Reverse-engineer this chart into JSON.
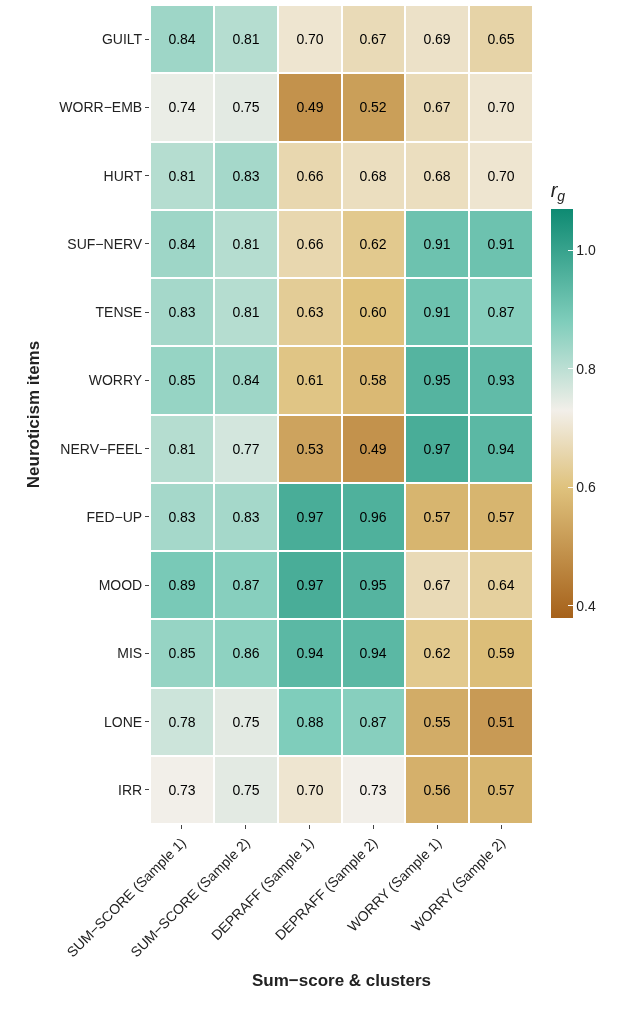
{
  "chart_data": {
    "type": "heatmap",
    "xlabel": "Sum−score & clusters",
    "ylabel": "Neuroticism items",
    "clabel": "r$_{g}$",
    "categories": [
      "SUM−SCORE (Sample 1)",
      "SUM−SCORE (Sample 2)",
      "DEPRAFF (Sample 1)",
      "DEPRAFF (Sample 2)",
      "WORRY (Sample 1)",
      "WORRY (Sample 2)"
    ],
    "y_categories": [
      "GUILT",
      "WORR−EMB",
      "HURT",
      "SUF−NERV",
      "TENSE",
      "WORRY",
      "NERV−FEEL",
      "FED−UP",
      "MOOD",
      "MIS",
      "LONE",
      "IRR"
    ],
    "cells": [
      [
        0.84,
        0.81,
        0.7,
        0.67,
        0.69,
        0.65
      ],
      [
        0.74,
        0.75,
        0.49,
        0.52,
        0.67,
        0.7
      ],
      [
        0.81,
        0.83,
        0.66,
        0.68,
        0.68,
        0.7
      ],
      [
        0.84,
        0.81,
        0.66,
        0.62,
        0.91,
        0.91
      ],
      [
        0.83,
        0.81,
        0.63,
        0.6,
        0.91,
        0.87
      ],
      [
        0.85,
        0.84,
        0.61,
        0.58,
        0.95,
        0.93
      ],
      [
        0.81,
        0.77,
        0.53,
        0.49,
        0.97,
        0.94
      ],
      [
        0.83,
        0.83,
        0.97,
        0.96,
        0.57,
        0.57
      ],
      [
        0.89,
        0.87,
        0.97,
        0.95,
        0.67,
        0.64
      ],
      [
        0.85,
        0.86,
        0.94,
        0.94,
        0.62,
        0.59
      ],
      [
        0.78,
        0.75,
        0.88,
        0.87,
        0.55,
        0.51
      ],
      [
        0.73,
        0.75,
        0.7,
        0.73,
        0.56,
        0.57
      ]
    ],
    "cell_labels": [
      [
        "0.84",
        "0.81",
        "0.70",
        "0.67",
        "0.69",
        "0.65"
      ],
      [
        "0.74",
        "0.75",
        "0.49",
        "0.52",
        "0.67",
        "0.70"
      ],
      [
        "0.81",
        "0.83",
        "0.66",
        "0.68",
        "0.68",
        "0.70"
      ],
      [
        "0.84",
        "0.81",
        "0.66",
        "0.62",
        "0.91",
        "0.91"
      ],
      [
        "0.83",
        "0.81",
        "0.63",
        "0.60",
        "0.91",
        "0.87"
      ],
      [
        "0.85",
        "0.84",
        "0.61",
        "0.58",
        "0.95",
        "0.93"
      ],
      [
        "0.81",
        "0.77",
        "0.53",
        "0.49",
        "0.97",
        "0.94"
      ],
      [
        "0.83",
        "0.83",
        "0.97",
        "0.96",
        "0.57",
        "0.57"
      ],
      [
        "0.89",
        "0.87",
        "0.97",
        "0.95",
        "0.67",
        "0.64"
      ],
      [
        "0.85",
        "0.86",
        "0.94",
        "0.94",
        "0.62",
        "0.59"
      ],
      [
        "0.78",
        "0.75",
        "0.88",
        "0.87",
        "0.55",
        "0.51"
      ],
      [
        "0.73",
        "0.75",
        "0.70",
        "0.73",
        "0.56",
        "0.57"
      ]
    ],
    "clim": [
      0.38,
      1.07
    ],
    "cticks": [
      {
        "value": 0.4,
        "label": "0.4"
      },
      {
        "value": 0.6,
        "label": "0.6"
      },
      {
        "value": 0.8,
        "label": "0.8"
      },
      {
        "value": 1.0,
        "label": "1.0"
      }
    ]
  }
}
